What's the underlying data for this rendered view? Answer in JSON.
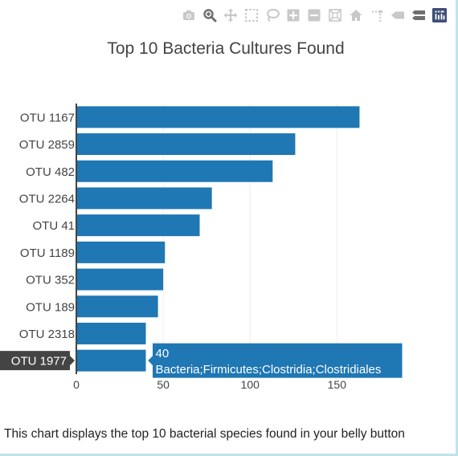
{
  "modebar": {
    "buttons": [
      {
        "icon": "camera-icon",
        "name": "download-plot-button"
      },
      {
        "icon": "zoom-icon",
        "name": "zoom-button"
      },
      {
        "icon": "pan-icon",
        "name": "pan-button"
      },
      {
        "icon": "box-select-icon",
        "name": "box-select-button"
      },
      {
        "icon": "lasso-select-icon",
        "name": "lasso-select-button"
      },
      {
        "icon": "zoom-in-icon",
        "name": "zoom-in-button"
      },
      {
        "icon": "zoom-out-icon",
        "name": "zoom-out-button"
      },
      {
        "icon": "autoscale-icon",
        "name": "autoscale-button"
      },
      {
        "icon": "home-icon",
        "name": "reset-axes-button"
      },
      {
        "icon": "spike-lines-icon",
        "name": "spike-lines-button"
      },
      {
        "icon": "hover-closest-icon",
        "name": "hover-closest-button"
      },
      {
        "icon": "hover-compare-icon",
        "name": "hover-compare-button"
      },
      {
        "icon": "plotly-logo-icon",
        "name": "plotly-logo-button"
      }
    ],
    "icon_color": "#c8c8c8",
    "active_color": "#6f6f6f",
    "logo_color": "#3f4f75"
  },
  "chart_data": {
    "type": "bar",
    "orientation": "horizontal",
    "title": "Top 10 Bacteria Cultures Found",
    "categories": [
      "OTU 1167",
      "OTU 2859",
      "OTU 482",
      "OTU 2264",
      "OTU 41",
      "OTU 1189",
      "OTU 352",
      "OTU 189",
      "OTU 2318",
      "OTU 1977"
    ],
    "values": [
      163,
      126,
      113,
      78,
      71,
      51,
      50,
      47,
      40,
      40
    ],
    "xlim": [
      0,
      185
    ],
    "xticks": [
      0,
      50,
      100,
      150
    ],
    "xlabel": "",
    "ylabel": "",
    "grid": true,
    "bar_color": "#1f77b4",
    "hover": {
      "category": "OTU 1977",
      "value_label": "40",
      "text": "Bacteria;Firmicutes;Clostridia;Clostridiales"
    }
  },
  "caption": "This chart displays the top 10 bacterial species found in your belly button"
}
